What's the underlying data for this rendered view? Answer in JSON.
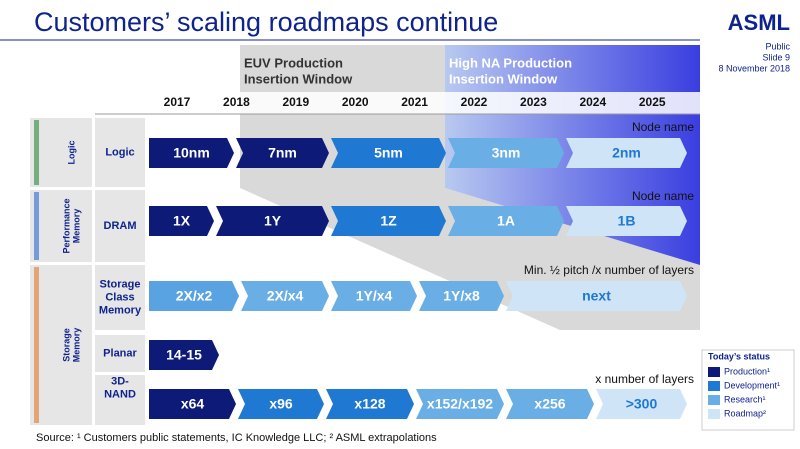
{
  "header": {
    "title": "Customers’ scaling roadmaps continue",
    "logo": "ASML",
    "classification": "Public",
    "slide": "Slide 9",
    "date": "8 November 2018"
  },
  "windows": [
    {
      "lines": [
        "EUV Production",
        "Insertion Window"
      ]
    },
    {
      "lines": [
        "High NA Production",
        "Insertion Window"
      ]
    }
  ],
  "years": [
    "2017",
    "2018",
    "2019",
    "2020",
    "2021",
    "2022",
    "2023",
    "2024",
    "2025"
  ],
  "groups": [
    {
      "lines": [
        "Logic"
      ]
    },
    {
      "lines": [
        "Performance",
        "Memory"
      ]
    },
    {
      "lines": [
        "Storage",
        "Memory"
      ]
    }
  ],
  "rows": [
    {
      "label": [
        "Logic"
      ],
      "note": "Node name",
      "segments": [
        {
          "text": "10nm",
          "color": "#0d1a78"
        },
        {
          "text": "7nm",
          "color": "#0d1a78"
        },
        {
          "text": "5nm",
          "color": "#1f78d1"
        },
        {
          "text": "3nm",
          "color": "#6aaee6"
        },
        {
          "text": "2nm",
          "color": "#cfe5f7"
        }
      ]
    },
    {
      "label": [
        "DRAM"
      ],
      "note": "Node name",
      "segments": [
        {
          "text": "1X",
          "color": "#0d1a78"
        },
        {
          "text": "1Y",
          "color": "#0d1a78"
        },
        {
          "text": "1Z",
          "color": "#1f78d1"
        },
        {
          "text": "1A",
          "color": "#6aaee6"
        },
        {
          "text": "1B",
          "color": "#cfe5f7"
        }
      ]
    },
    {
      "label": [
        "Storage",
        "Class",
        "Memory"
      ],
      "note": "Min. ½ pitch /x number of layers",
      "segments": [
        {
          "text": "2X/x2",
          "color": "#5aa3e2"
        },
        {
          "text": "2X/x4",
          "color": "#6aaee6"
        },
        {
          "text": "1Y/x4",
          "color": "#6aaee6"
        },
        {
          "text": "1Y/x8",
          "color": "#6aaee6"
        },
        {
          "text": "next",
          "color": "#cfe5f7"
        }
      ]
    },
    {
      "label": [
        "Planar"
      ],
      "segments": [
        {
          "text": "14-15",
          "color": "#0d1a78"
        }
      ]
    },
    {
      "label": [
        "3D-",
        "NAND"
      ],
      "note": "x number of layers",
      "segments": [
        {
          "text": "x64",
          "color": "#0d1a78"
        },
        {
          "text": "x96",
          "color": "#1f78d1"
        },
        {
          "text": "x128",
          "color": "#1f78d1"
        },
        {
          "text": "x152/x192",
          "color": "#6aaee6"
        },
        {
          "text": "x256",
          "color": "#6aaee6"
        },
        {
          "text": ">300",
          "color": "#cfe5f7"
        }
      ]
    }
  ],
  "legend": {
    "title": "Today’s status",
    "items": [
      {
        "text": "Production¹",
        "color": "#0d1a78"
      },
      {
        "text": "Development¹",
        "color": "#1f78d1"
      },
      {
        "text": "Research¹",
        "color": "#6aaee6"
      },
      {
        "text": "Roadmap²",
        "color": "#cfe5f7"
      }
    ]
  },
  "source": "Source: ¹ Customers public statements, IC Knowledge LLC; ² ASML extrapolations"
}
